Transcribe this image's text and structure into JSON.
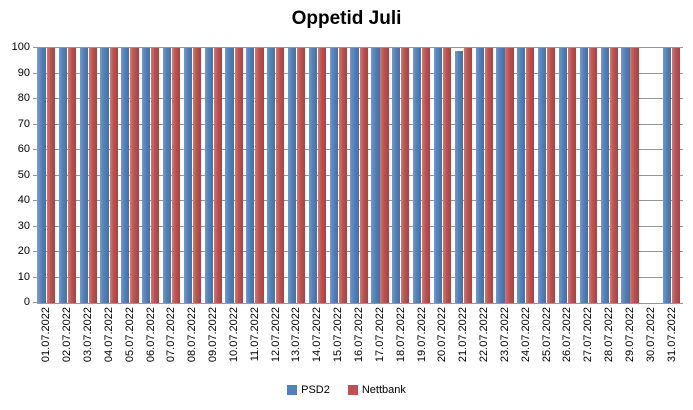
{
  "chart_data": {
    "type": "bar",
    "title": "Oppetid Juli",
    "categories": [
      "01.07.2022",
      "02.07.2022",
      "03.07.2022",
      "04.07.2022",
      "05.07.2022",
      "06.07.2022",
      "07.07.2022",
      "08.07.2022",
      "09.07.2022",
      "10.07.2022",
      "11.07.2022",
      "12.07.2022",
      "13.07.2022",
      "14.07.2022",
      "15.07.2022",
      "16.07.2022",
      "17.07.2022",
      "18.07.2022",
      "19.07.2022",
      "20.07.2022",
      "21.07.2022",
      "22.07.2022",
      "23.07.2022",
      "24.07.2022",
      "25.07.2022",
      "26.07.2022",
      "27.07.2022",
      "28.07.2022",
      "29.07.2022",
      "30.07.2022",
      "31.07.2022"
    ],
    "series": [
      {
        "name": "PSD2",
        "color": "#4F81BD",
        "values": [
          100,
          100,
          100,
          100,
          100,
          100,
          100,
          100,
          100,
          100,
          100,
          100,
          100,
          100,
          100,
          100,
          100,
          100,
          100,
          100,
          99,
          100,
          100,
          100,
          100,
          100,
          100,
          100,
          100,
          0,
          100
        ]
      },
      {
        "name": "Nettbank",
        "color": "#C0504D",
        "values": [
          100,
          100,
          100,
          100,
          100,
          100,
          100,
          100,
          100,
          100,
          100,
          100,
          100,
          100,
          100,
          100,
          100,
          100,
          100,
          100,
          100,
          100,
          100,
          100,
          100,
          100,
          100,
          100,
          100,
          0,
          100
        ]
      }
    ],
    "ylim": [
      0,
      100
    ],
    "ytick_step": 10,
    "grid": true,
    "legend_position": "bottom"
  },
  "colors": {
    "gridline": "#969696",
    "axis": "#969696",
    "text": "#000000",
    "background": "#FFFFFF"
  }
}
